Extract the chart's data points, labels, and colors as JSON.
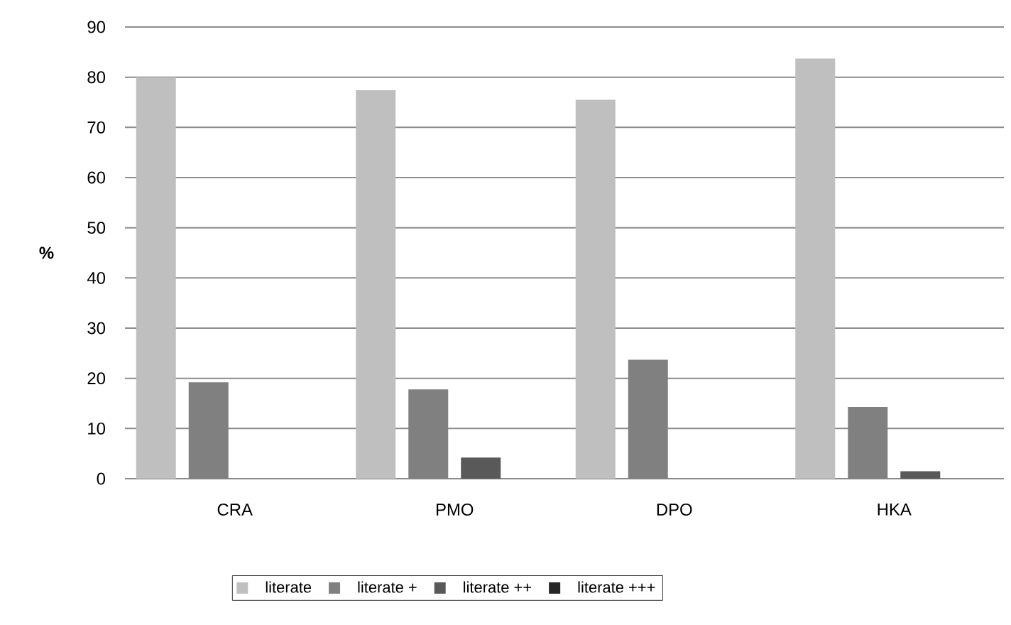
{
  "chart_data": {
    "type": "bar",
    "ylabel": "%",
    "categories": [
      "CRA",
      "PMO",
      "DPO",
      "HKA"
    ],
    "series": [
      {
        "name": "literate",
        "color": "#bfbfbf",
        "values": [
          80,
          77.4,
          75.5,
          83.7
        ]
      },
      {
        "name": "literate +",
        "color": "#808080",
        "values": [
          19.2,
          17.8,
          23.7,
          14.3
        ]
      },
      {
        "name": "literate ++",
        "color": "#595959",
        "values": [
          0,
          4.2,
          0,
          1.5
        ]
      },
      {
        "name": "literate +++",
        "color": "#262626",
        "values": [
          0,
          0,
          0,
          0
        ]
      }
    ],
    "ylim": [
      0,
      90
    ],
    "yticks": [
      0,
      10,
      20,
      30,
      40,
      50,
      60,
      70,
      80,
      90
    ],
    "grid": "y",
    "legend": "bottom"
  }
}
